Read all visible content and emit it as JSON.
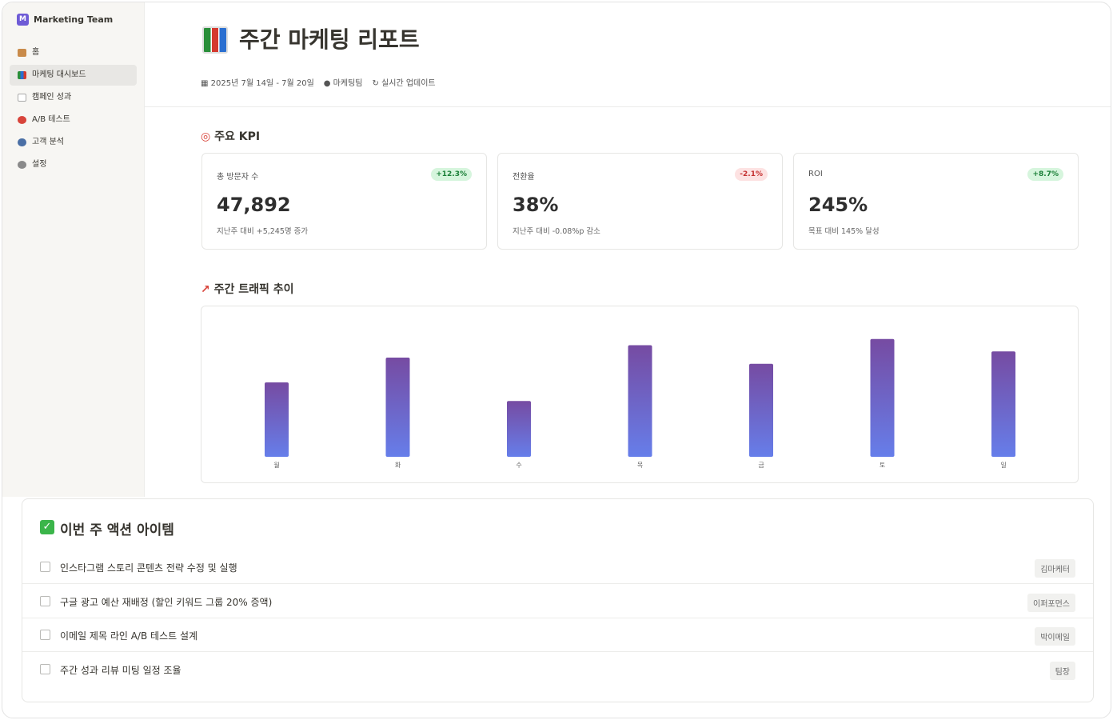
{
  "sidebar": {
    "workspace_initial": "M",
    "workspace": "Marketing Team",
    "nav": [
      "홈",
      "마케팅 대시보드",
      "캠페인 성과",
      "A/B 테스트",
      "고객 분석",
      "설정"
    ]
  },
  "header": {
    "title": "주간 마케팅 리포트",
    "date_range": "2025년 7월 14일 - 7월 20일",
    "team": "마케팅팀",
    "update": "실시간 업데이트"
  },
  "kpi": {
    "title": "주요 KPI",
    "cards": [
      {
        "label": "총 방문자 수",
        "badge": "+12.3%",
        "value": "47,892",
        "note": "지난주 대비 +5,245명 증가"
      },
      {
        "label": "전환율",
        "badge": "-2.1%",
        "value": "38%",
        "note": "지난주 대비 -0.08%p 감소"
      },
      {
        "label": "ROI",
        "badge": "+8.7%",
        "value": "245%",
        "note": "목표 대비 145% 달성"
      }
    ]
  },
  "chart_data": {
    "type": "bar",
    "title": "주간 트래픽 추이",
    "categories": [
      "월",
      "화",
      "수",
      "목",
      "금",
      "토",
      "일"
    ],
    "values": [
      60,
      80,
      45,
      90,
      75,
      95,
      85
    ],
    "ylim": [
      0,
      100
    ],
    "color_top": "#764ba2",
    "color_bottom": "#667eea"
  },
  "actions": {
    "title": "이번 주 액션 아이템",
    "items": [
      {
        "text": "인스타그램 스토리 콘텐츠 전략 수정 및 실행",
        "owner": "김마케터"
      },
      {
        "text": "구글 광고 예산 재배정 (할인 키워드 그룹 20% 증액)",
        "owner": "이퍼포먼스"
      },
      {
        "text": "이메일 제목 라인 A/B 테스트 설계",
        "owner": "박이메일"
      },
      {
        "text": "주간 성과 리뷰 미팅 일정 조율",
        "owner": "팀장"
      }
    ]
  }
}
